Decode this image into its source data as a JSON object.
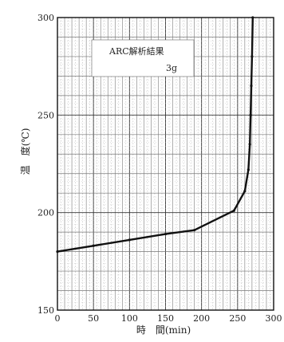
{
  "chart_data": {
    "type": "line",
    "title": "",
    "annotation": [
      "ARC解析結果",
      "3g"
    ],
    "xlabel": "時　間(min)",
    "ylabel": "温　度(℃)",
    "xlim": [
      0,
      300
    ],
    "ylim": [
      150,
      300
    ],
    "xticks": [
      0,
      50,
      100,
      150,
      200,
      250,
      300
    ],
    "yticks": [
      150,
      200,
      250,
      300
    ],
    "grid": true,
    "series": [
      {
        "x": [
          0,
          50,
          100,
          150,
          190,
          245,
          260,
          265,
          267,
          268,
          269,
          270,
          271
        ],
        "y": [
          180,
          183,
          186,
          189,
          191,
          201,
          211,
          222,
          235,
          250,
          265,
          280,
          300
        ]
      }
    ]
  }
}
